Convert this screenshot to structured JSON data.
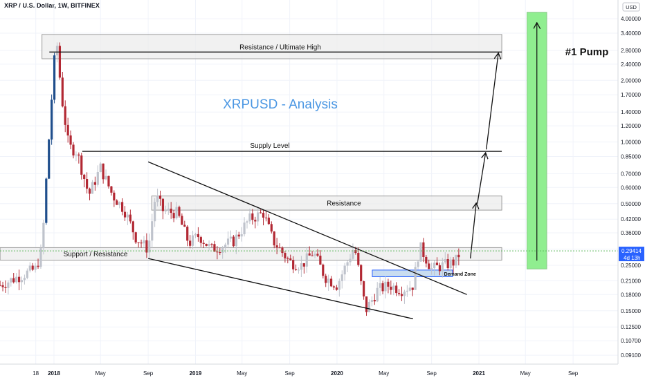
{
  "header": {
    "symbol_title": "XRP / U.S. Dollar, 1W, BITFINEX",
    "currency": "USD"
  },
  "colors": {
    "up": "#bfc3cc",
    "down": "#b22833",
    "up_big": "#1f4e8c",
    "accent_title": "#4b97e3",
    "zone_fill": "#ececec",
    "zone_stroke": "#9a9a9a",
    "demand_fill": "#c3d9ee",
    "demand_stroke": "#2962ff",
    "pump_fill": "#90ee90",
    "price_label_bg": "#2962ff",
    "current_line": "#5cb85c",
    "grid": "#f0f3fa"
  },
  "chart_data": {
    "type": "candlestick",
    "title": "XRPUSD - Analysis",
    "scale": "log",
    "ylim": [
      0.08,
      4.7
    ],
    "y_ticks": [
      "4.00000",
      "3.40000",
      "2.80000",
      "2.40000",
      "2.00000",
      "1.70000",
      "1.40000",
      "1.20000",
      "1.00000",
      "0.85000",
      "0.70000",
      "0.60000",
      "0.50000",
      "0.42000",
      "0.36000",
      "0.30000",
      "0.25000",
      "0.21000",
      "0.18000",
      "0.15000",
      "0.12500",
      "0.10700",
      "0.09100"
    ],
    "x_ticks": [
      {
        "label": "18",
        "date": "2017-11-15"
      },
      {
        "label": "2018",
        "date": "2018-01-01"
      },
      {
        "label": "May",
        "date": "2018-05-01"
      },
      {
        "label": "Sep",
        "date": "2018-09-01"
      },
      {
        "label": "2019",
        "date": "2019-01-01"
      },
      {
        "label": "May",
        "date": "2019-05-01"
      },
      {
        "label": "Sep",
        "date": "2019-09-01"
      },
      {
        "label": "2020",
        "date": "2020-01-01"
      },
      {
        "label": "May",
        "date": "2020-05-01"
      },
      {
        "label": "Sep",
        "date": "2020-09-01"
      },
      {
        "label": "2021",
        "date": "2021-01-01"
      },
      {
        "label": "May",
        "date": "2021-05-01"
      },
      {
        "label": "Sep",
        "date": "2021-09-01"
      }
    ],
    "key_prices": [
      {
        "date": "2017-08-15",
        "close": 0.2
      },
      {
        "date": "2017-10-01",
        "close": 0.22
      },
      {
        "date": "2017-11-15",
        "close": 0.24
      },
      {
        "date": "2017-12-01",
        "close": 0.3
      },
      {
        "date": "2017-12-15",
        "close": 0.8
      },
      {
        "date": "2018-01-01",
        "close": 2.4
      },
      {
        "date": "2018-01-08",
        "close": 3.1
      },
      {
        "date": "2018-01-20",
        "close": 1.7
      },
      {
        "date": "2018-02-08",
        "close": 0.95
      },
      {
        "date": "2018-03-01",
        "close": 0.9
      },
      {
        "date": "2018-04-01",
        "close": 0.55
      },
      {
        "date": "2018-05-01",
        "close": 0.75
      },
      {
        "date": "2018-06-01",
        "close": 0.55
      },
      {
        "date": "2018-07-01",
        "close": 0.47
      },
      {
        "date": "2018-08-01",
        "close": 0.34
      },
      {
        "date": "2018-09-01",
        "close": 0.3
      },
      {
        "date": "2018-09-20",
        "close": 0.55
      },
      {
        "date": "2018-10-10",
        "close": 0.46
      },
      {
        "date": "2018-11-15",
        "close": 0.45
      },
      {
        "date": "2018-12-15",
        "close": 0.32
      },
      {
        "date": "2019-01-10",
        "close": 0.35
      },
      {
        "date": "2019-02-10",
        "close": 0.3
      },
      {
        "date": "2019-03-10",
        "close": 0.31
      },
      {
        "date": "2019-04-10",
        "close": 0.33
      },
      {
        "date": "2019-05-20",
        "close": 0.42
      },
      {
        "date": "2019-06-25",
        "close": 0.45
      },
      {
        "date": "2019-07-20",
        "close": 0.33
      },
      {
        "date": "2019-09-01",
        "close": 0.26
      },
      {
        "date": "2019-10-01",
        "close": 0.25
      },
      {
        "date": "2019-11-01",
        "close": 0.29
      },
      {
        "date": "2019-12-01",
        "close": 0.22
      },
      {
        "date": "2020-01-01",
        "close": 0.2
      },
      {
        "date": "2020-02-15",
        "close": 0.31
      },
      {
        "date": "2020-03-15",
        "close": 0.15
      },
      {
        "date": "2020-04-15",
        "close": 0.19
      },
      {
        "date": "2020-05-15",
        "close": 0.2
      },
      {
        "date": "2020-06-15",
        "close": 0.19
      },
      {
        "date": "2020-07-15",
        "close": 0.2
      },
      {
        "date": "2020-08-01",
        "close": 0.31
      },
      {
        "date": "2020-09-01",
        "close": 0.24
      },
      {
        "date": "2020-10-01",
        "close": 0.25
      },
      {
        "date": "2020-11-01",
        "close": 0.26
      },
      {
        "date": "2020-11-15",
        "close": 0.294
      }
    ],
    "current_price": {
      "value": "0.29414",
      "countdown": "4d 13h"
    },
    "zones": [
      {
        "name": "Resistance / Ultimate High",
        "from": "2017-12-01",
        "to": "2021-03-01",
        "low": 2.55,
        "high": 3.35
      },
      {
        "name": "Resistance",
        "from": "2018-09-10",
        "to": "2021-03-01",
        "low": 0.465,
        "high": 0.545
      },
      {
        "name": "Support / Resistance",
        "from": "2017-08-15",
        "to": "2021-03-01",
        "low": 0.265,
        "high": 0.305
      },
      {
        "name": "Demand Zone",
        "from": "2020-04-01",
        "to": "2020-10-25",
        "low": 0.22,
        "high": 0.237
      }
    ],
    "lines": [
      {
        "name": "Resistance / Ultimate High",
        "from": "2017-12-20",
        "to": "2021-03-01",
        "y": 2.75
      },
      {
        "name": "Supply Level",
        "from": "2018-03-15",
        "to": "2021-03-01",
        "y": 0.9
      }
    ],
    "trendlines": [
      {
        "from": [
          "2018-09-01",
          0.8
        ],
        "to": [
          "2020-12-01",
          0.18
        ]
      },
      {
        "from": [
          "2018-09-01",
          0.27
        ],
        "to": [
          "2020-07-15",
          0.137
        ]
      }
    ],
    "arrows": [
      {
        "from": [
          "2020-12-10",
          0.27
        ],
        "to": [
          "2020-12-25",
          0.5
        ]
      },
      {
        "from": [
          "2020-12-28",
          0.5
        ],
        "to": [
          "2021-01-18",
          0.88
        ]
      },
      {
        "from": [
          "2021-01-20",
          0.92
        ],
        "to": [
          "2021-02-20",
          2.7
        ]
      }
    ],
    "pump_label": "#1 Pump",
    "pump_box": {
      "from": "2021-05-05",
      "to": "2021-06-25",
      "low": 0.24,
      "high": 4.3
    }
  }
}
